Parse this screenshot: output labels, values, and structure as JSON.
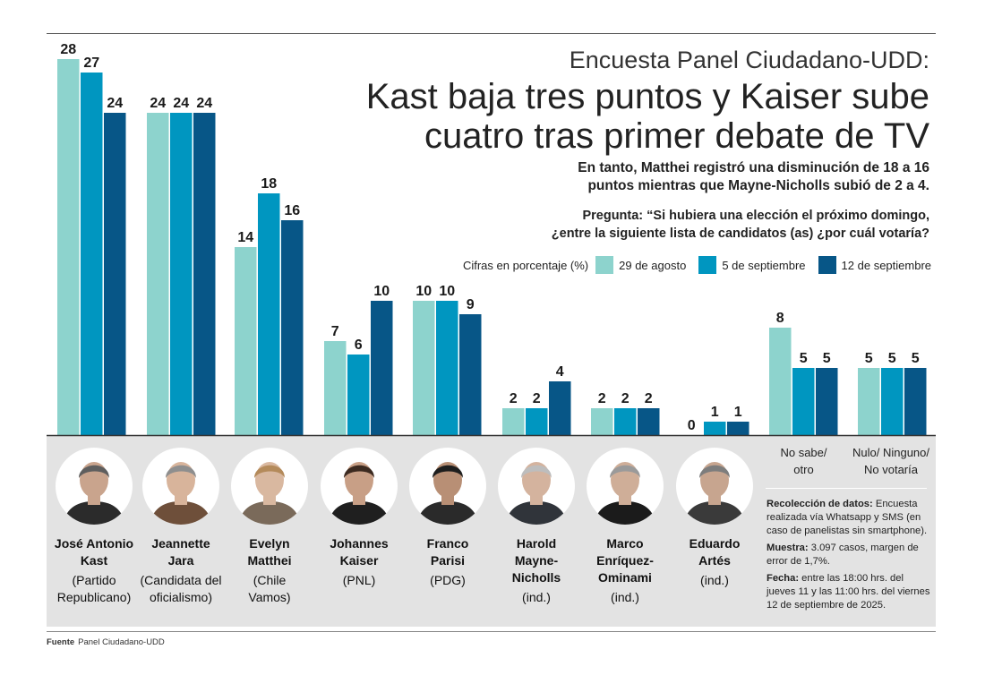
{
  "header": {
    "kicker": "Encuesta Panel Ciudadano-UDD:",
    "headline_line1": "Kast baja tres puntos y Kaiser sube",
    "headline_line2": "cuatro tras primer debate de TV",
    "subtitle_line1": "En tanto, Matthei registró una disminución de 18 a 16",
    "subtitle_line2": "puntos mientras que Mayne-Nicholls subió de 2 a 4.",
    "question_line1": "Pregunta: “Si hubiera una elección el próximo domingo,",
    "question_line2": "¿entre la siguiente lista de candidatos (as) ¿por cuál votaría?"
  },
  "legend": {
    "unit_label": "Cifras en porcentaje (%)",
    "items": [
      {
        "label": "29 de agosto",
        "color": "#8dd3cd"
      },
      {
        "label": "5 de septiembre",
        "color": "#0096c0"
      },
      {
        "label": "12 de septiembre",
        "color": "#075687"
      }
    ]
  },
  "chart_data": {
    "type": "bar",
    "categories": [
      "José Antonio Kast",
      "Jeannette Jara",
      "Evelyn Matthei",
      "Johannes Kaiser",
      "Franco Parisi",
      "Harold Mayne-Nicholls",
      "Marco Enríquez-Ominami",
      "Eduardo Artés",
      "No sabe/ otro",
      "Nulo/ Ninguno/ No votaría"
    ],
    "series": [
      {
        "name": "29 de agosto",
        "color": "#8dd3cd",
        "values": [
          28,
          24,
          14,
          7,
          10,
          2,
          2,
          0,
          8,
          5
        ]
      },
      {
        "name": "5 de septiembre",
        "color": "#0096c0",
        "values": [
          27,
          24,
          18,
          6,
          10,
          2,
          2,
          1,
          5,
          5
        ]
      },
      {
        "name": "12 de septiembre",
        "color": "#075687",
        "values": [
          24,
          24,
          16,
          10,
          9,
          4,
          2,
          1,
          5,
          5
        ]
      }
    ],
    "ylim": [
      0,
      28
    ]
  },
  "candidates": [
    {
      "name_line1": "José Antonio",
      "name_line2": "Kast",
      "party_line1": "(Partido",
      "party_line2": "Republicano)"
    },
    {
      "name_line1": "Jeannette",
      "name_line2": "Jara",
      "party_line1": "(Candidata del",
      "party_line2": "oficialismo)"
    },
    {
      "name_line1": "Evelyn",
      "name_line2": "Matthei",
      "party_line1": "(Chile",
      "party_line2": "Vamos)"
    },
    {
      "name_line1": "Johannes",
      "name_line2": "Kaiser",
      "party_line1": "(PNL)",
      "party_line2": ""
    },
    {
      "name_line1": "Franco",
      "name_line2": "Parisi",
      "party_line1": "(PDG)",
      "party_line2": ""
    },
    {
      "name_line1": "Harold",
      "name_line2": "Mayne-",
      "name_line3": "Nicholls",
      "party_line1": "(ind.)",
      "party_line2": ""
    },
    {
      "name_line1": "Marco",
      "name_line2": "Enríquez-",
      "name_line3": "Ominami",
      "party_line1": "(ind.)",
      "party_line2": ""
    },
    {
      "name_line1": "Eduardo",
      "name_line2": "Artés",
      "party_line1": "(ind.)",
      "party_line2": ""
    }
  ],
  "extra_labels": [
    {
      "line1": "No sabe/",
      "line2": "otro"
    },
    {
      "line1": "Nulo/ Ninguno/",
      "line2": "No votaría"
    }
  ],
  "methodology": {
    "collection_label": "Recolección de datos:",
    "collection_text": "Encuesta realizada vía Whatsapp y SMS (en caso de panelistas sin smartphone).",
    "sample_label": "Muestra:",
    "sample_text": "3.097 casos, margen de error de 1,7%.",
    "date_label": "Fecha:",
    "date_text": "entre las 18:00 hrs. del jueves 11 y las 11:00 hrs. del viernes 12 de septiembre de 2025."
  },
  "footer": {
    "source_label": "Fuente",
    "source_text": "Panel Ciudadano-UDD"
  }
}
